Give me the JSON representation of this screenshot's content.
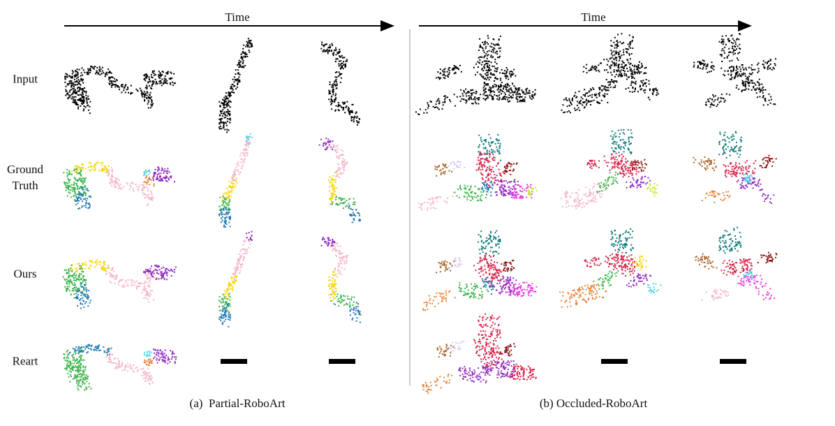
{
  "panels": [
    {
      "time_label": "Time",
      "caption": "(a)  Partial-RoboArt"
    },
    {
      "time_label": "Time",
      "caption": "(b) Occluded-RoboArt"
    }
  ],
  "rows": [
    "Input",
    "Ground Truth",
    "Ours",
    "Reart"
  ]
}
